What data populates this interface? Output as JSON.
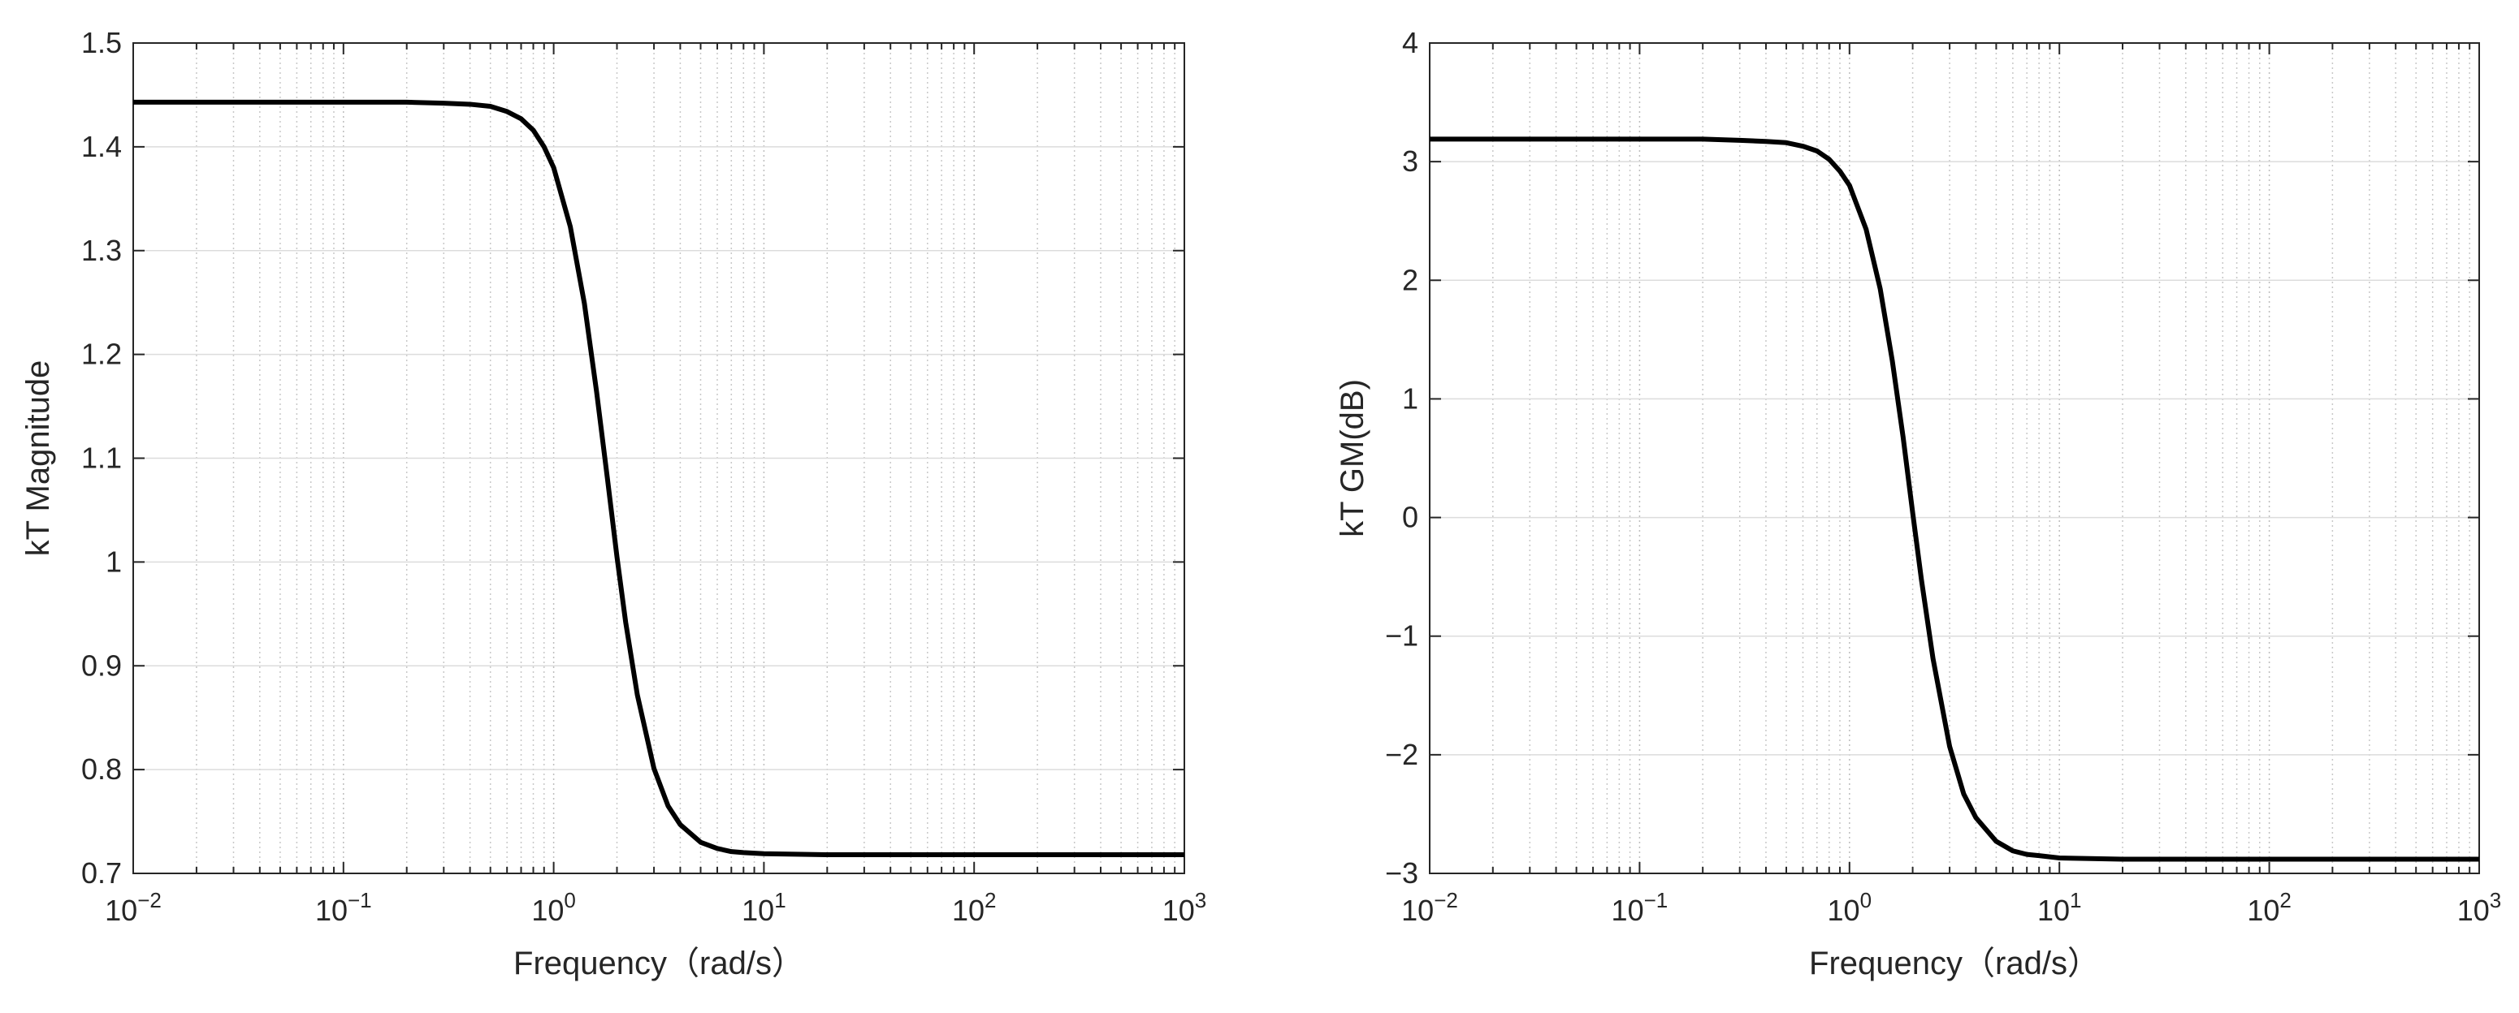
{
  "chart_data": [
    {
      "type": "line",
      "xlabel": "Frequency（rad/s）",
      "ylabel": "kT Magnitude",
      "log_x": true,
      "grid": true,
      "color": "#000000",
      "x": [
        0.01,
        0.1,
        0.2,
        0.3,
        0.4,
        0.5,
        0.6,
        0.7,
        0.8,
        0.9,
        1,
        1.2,
        1.4,
        1.6,
        1.8,
        2,
        2.2,
        2.5,
        3,
        3.5,
        4,
        5,
        6,
        7,
        8,
        10,
        20,
        100,
        1000
      ],
      "values": [
        1.443,
        1.443,
        1.443,
        1.442,
        1.441,
        1.439,
        1.434,
        1.427,
        1.416,
        1.4,
        1.38,
        1.323,
        1.249,
        1.164,
        1.081,
        1.005,
        0.942,
        0.872,
        0.801,
        0.765,
        0.747,
        0.73,
        0.724,
        0.721,
        0.72,
        0.719,
        0.718,
        0.718,
        0.718
      ],
      "xlim": [
        0.01,
        1000
      ],
      "xticks": [
        {
          "value": 0.01,
          "label": "10",
          "exponent": "−2"
        },
        {
          "value": 0.1,
          "label": "10",
          "exponent": "−1"
        },
        {
          "value": 1,
          "label": "10",
          "exponent": "0"
        },
        {
          "value": 10,
          "label": "10",
          "exponent": "1"
        },
        {
          "value": 100,
          "label": "10",
          "exponent": "2"
        },
        {
          "value": 1000,
          "label": "10",
          "exponent": "3"
        }
      ],
      "ylim": [
        0.7,
        1.5
      ],
      "yticks": [
        0.7,
        0.8,
        0.9,
        1,
        1.1,
        1.2,
        1.3,
        1.4,
        1.5
      ]
    },
    {
      "type": "line",
      "xlabel": "Frequency（rad/s）",
      "ylabel": "kT GM(dB)",
      "log_x": true,
      "grid": true,
      "color": "#000000",
      "x": [
        0.01,
        0.1,
        0.2,
        0.3,
        0.4,
        0.5,
        0.6,
        0.7,
        0.8,
        0.9,
        1,
        1.2,
        1.4,
        1.6,
        1.8,
        2,
        2.2,
        2.5,
        3,
        3.5,
        4,
        5,
        6,
        7,
        8,
        10,
        20,
        100,
        1000
      ],
      "values": [
        3.19,
        3.19,
        3.19,
        3.18,
        3.17,
        3.16,
        3.13,
        3.09,
        3.02,
        2.92,
        2.8,
        2.43,
        1.93,
        1.32,
        0.68,
        0.04,
        -0.52,
        -1.19,
        -1.93,
        -2.33,
        -2.53,
        -2.73,
        -2.81,
        -2.84,
        -2.85,
        -2.87,
        -2.88,
        -2.88,
        -2.88
      ],
      "xlim": [
        0.01,
        1000
      ],
      "xticks": [
        {
          "value": 0.01,
          "label": "10",
          "exponent": "−2"
        },
        {
          "value": 0.1,
          "label": "10",
          "exponent": "−1"
        },
        {
          "value": 1,
          "label": "10",
          "exponent": "0"
        },
        {
          "value": 10,
          "label": "10",
          "exponent": "1"
        },
        {
          "value": 100,
          "label": "10",
          "exponent": "2"
        },
        {
          "value": 1000,
          "label": "10",
          "exponent": "3"
        }
      ],
      "ylim": [
        -3,
        4
      ],
      "yticks": [
        {
          "value": -3,
          "label": "−3"
        },
        {
          "value": -2,
          "label": "−2"
        },
        {
          "value": -1,
          "label": "−1"
        },
        0,
        1,
        2,
        3,
        4
      ]
    }
  ]
}
